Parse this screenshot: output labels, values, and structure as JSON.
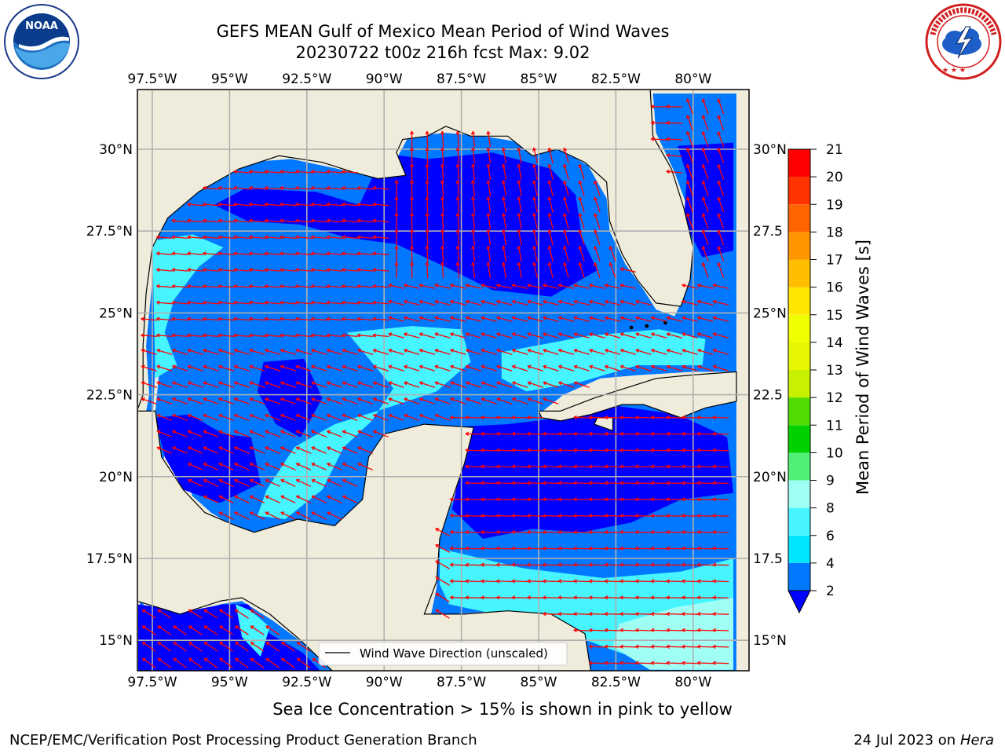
{
  "header": {
    "title_line1": "GEFS MEAN Gulf of Mexico Mean Period of Wind Waves",
    "title_line2": "20230722 t00z 216h fcst   Max: 9.02"
  },
  "logos": {
    "left": {
      "name": "NOAA",
      "ring_text": "NATIONAL OCEANIC AND ATMOSPHERIC ADMINISTRATION · U.S. DEPARTMENT OF COMMERCE"
    },
    "right": {
      "name": "NATIONAL WEATHER SERVICE"
    }
  },
  "map": {
    "lon_labels": [
      "97.5°W",
      "95°W",
      "92.5°W",
      "90°W",
      "87.5°W",
      "85°W",
      "82.5°W",
      "80°W"
    ],
    "lat_labels": [
      "30°N",
      "27.5°N",
      "25°N",
      "22.5°N",
      "20°N",
      "17.5°N",
      "15°N"
    ],
    "right_lat_labels": [
      "30°N",
      "27.5",
      "25°N",
      "22.5",
      "20°N",
      "17.5",
      "15°N"
    ],
    "legend_label": "Wind Wave Direction (unscaled)",
    "colors": {
      "land": "#efecdc",
      "arrow": "#ff0000",
      "coast": "#000000"
    }
  },
  "colorbar": {
    "label": "Mean Period of Wind Waves [s]",
    "ticks": [
      "2",
      "4",
      "6",
      "8",
      "9",
      "10",
      "11",
      "12",
      "13",
      "14",
      "15",
      "16",
      "17",
      "18",
      "19",
      "20",
      "21"
    ],
    "bins": [
      {
        "from": "2",
        "to": "4",
        "color": "#0078ff"
      },
      {
        "from": "4",
        "to": "6",
        "color": "#00e6ff"
      },
      {
        "from": "6",
        "to": "8",
        "color": "#46f5ff"
      },
      {
        "from": "8",
        "to": "9",
        "color": "#a0fff5"
      },
      {
        "from": "9",
        "to": "10",
        "color": "#50f078"
      },
      {
        "from": "10",
        "to": "11",
        "color": "#00d200"
      },
      {
        "from": "11",
        "to": "12",
        "color": "#50dc00"
      },
      {
        "from": "12",
        "to": "13",
        "color": "#c8f000"
      },
      {
        "from": "13",
        "to": "14",
        "color": "#e6f500"
      },
      {
        "from": "14",
        "to": "15",
        "color": "#f0ff00"
      },
      {
        "from": "15",
        "to": "16",
        "color": "#ffe600"
      },
      {
        "from": "16",
        "to": "17",
        "color": "#ffbe00"
      },
      {
        "from": "17",
        "to": "18",
        "color": "#ff9600"
      },
      {
        "from": "18",
        "to": "19",
        "color": "#ff6400"
      },
      {
        "from": "19",
        "to": "20",
        "color": "#ff3200"
      },
      {
        "from": "20",
        "to": "21",
        "color": "#ff0000"
      }
    ],
    "under_color": "#0000ff",
    "field_colors": {
      "dark": "#0000ff",
      "mid": "#0078ff",
      "cyan": "#46f5ff",
      "light": "#a0fff5"
    }
  },
  "footer": {
    "sea_ice_note": "Sea Ice Concentration > 15% is shown in pink to yellow",
    "credit": "NCEP/EMC/Verification Post Processing Product Generation Branch",
    "date_prefix": "24 Jul 2023 on ",
    "date_host": "Hera"
  }
}
